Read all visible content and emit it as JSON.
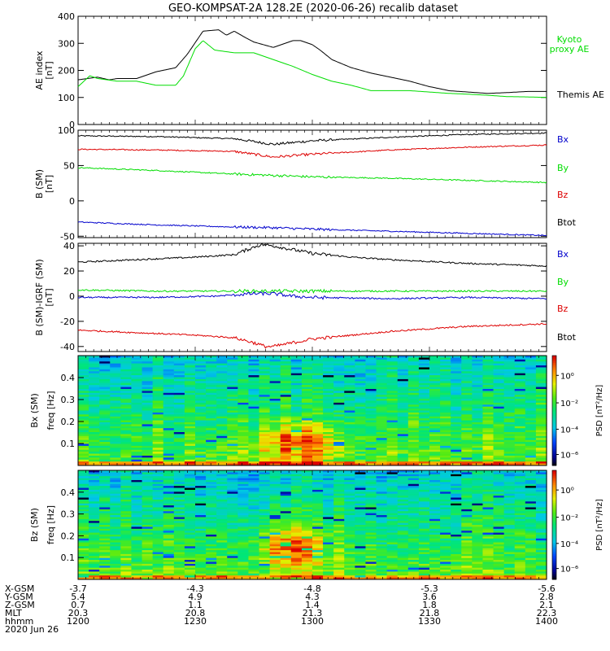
{
  "title": "GEO-KOMPSAT-2A 128.2E (2020-06-26) recalib dataset",
  "colors": {
    "black": "#000000",
    "green": "#00dd00",
    "red": "#dd0000",
    "blue": "#0000cc"
  },
  "chart_data": [
    {
      "type": "line",
      "panel": "ae",
      "ylabel": [
        "AE index",
        "[nT]"
      ],
      "ylim": [
        0,
        400
      ],
      "yticks": [
        "0",
        "100",
        "200",
        "300",
        "400"
      ],
      "series": [
        {
          "name": "Themis AE",
          "color": "#000000",
          "x": [
            0,
            5,
            8,
            10,
            15,
            20,
            25,
            28,
            32,
            36,
            38,
            40,
            43,
            45,
            50,
            55,
            57,
            60,
            62,
            65,
            70,
            75,
            80,
            85,
            90,
            95,
            100,
            105,
            110,
            115,
            120
          ],
          "y": [
            165,
            175,
            165,
            170,
            170,
            195,
            210,
            260,
            345,
            350,
            330,
            345,
            320,
            305,
            285,
            310,
            310,
            295,
            275,
            240,
            210,
            190,
            175,
            160,
            140,
            125,
            120,
            115,
            118,
            122,
            122
          ]
        },
        {
          "name": "Kyoto proxy AE",
          "color": "#00dd00",
          "x": [
            0,
            3,
            5,
            10,
            15,
            20,
            25,
            27,
            30,
            32,
            35,
            40,
            45,
            50,
            55,
            60,
            65,
            70,
            75,
            80,
            85,
            90,
            95,
            100,
            105,
            110,
            115,
            120
          ],
          "y": [
            140,
            180,
            170,
            160,
            160,
            145,
            145,
            180,
            280,
            310,
            275,
            265,
            265,
            240,
            215,
            185,
            160,
            145,
            125,
            125,
            125,
            120,
            115,
            112,
            108,
            103,
            102,
            100
          ]
        }
      ]
    },
    {
      "type": "line",
      "panel": "b",
      "ylabel": [
        "B (SM)",
        "[nT]"
      ],
      "ylim": [
        -52,
        100
      ],
      "yticks": [
        "-50",
        "0",
        "50",
        "100"
      ],
      "series": [
        {
          "name": "Btot",
          "color": "#000000",
          "x": [
            0,
            20,
            40,
            50,
            60,
            80,
            100,
            120
          ],
          "y": [
            92,
            91,
            88,
            80,
            85,
            90,
            94,
            96
          ]
        },
        {
          "name": "Bz",
          "color": "#dd0000",
          "x": [
            0,
            20,
            40,
            50,
            60,
            80,
            100,
            120
          ],
          "y": [
            73,
            72,
            70,
            62,
            66,
            72,
            76,
            79
          ]
        },
        {
          "name": "By",
          "color": "#00dd00",
          "x": [
            0,
            20,
            40,
            50,
            60,
            80,
            100,
            120
          ],
          "y": [
            47,
            43,
            38,
            36,
            34,
            32,
            29,
            26
          ]
        },
        {
          "name": "Bx",
          "color": "#0000cc",
          "x": [
            0,
            20,
            40,
            50,
            60,
            80,
            100,
            120
          ],
          "y": [
            -30,
            -34,
            -37,
            -38,
            -40,
            -43,
            -46,
            -49
          ]
        }
      ]
    },
    {
      "type": "line",
      "panel": "db",
      "ylabel": [
        "B (SM)-IGRF (SM)",
        "[nT]"
      ],
      "ylim": [
        -44,
        42
      ],
      "yticks": [
        "-40",
        "-20",
        "0",
        "20",
        "40"
      ],
      "series": [
        {
          "name": "Btot",
          "color": "#000000",
          "x": [
            0,
            15,
            30,
            40,
            45,
            47,
            50,
            55,
            60,
            70,
            80,
            100,
            120
          ],
          "y": [
            27,
            29,
            31,
            33,
            39,
            41,
            40,
            37,
            34,
            31,
            29,
            26,
            24
          ]
        },
        {
          "name": "By",
          "color": "#00dd00",
          "x": [
            0,
            20,
            40,
            50,
            60,
            80,
            100,
            120
          ],
          "y": [
            5,
            4,
            4,
            4,
            4,
            4,
            4,
            4
          ]
        },
        {
          "name": "Bx",
          "color": "#0000cc",
          "x": [
            0,
            20,
            35,
            45,
            50,
            55,
            60,
            80,
            100,
            120
          ],
          "y": [
            -1,
            -1,
            0,
            2,
            2,
            0,
            -1,
            -2,
            -1,
            -2
          ]
        },
        {
          "name": "Bz",
          "color": "#dd0000",
          "x": [
            0,
            15,
            30,
            40,
            45,
            48,
            50,
            55,
            60,
            70,
            80,
            100,
            120
          ],
          "y": [
            -27,
            -29,
            -31,
            -33,
            -37,
            -40,
            -40,
            -37,
            -34,
            -31,
            -28,
            -24,
            -22
          ]
        }
      ]
    },
    {
      "type": "heatmap",
      "panel": "spec1",
      "ylabel": [
        "Bx (SM)",
        "freq [Hz]"
      ],
      "ylim": [
        0,
        0.5
      ],
      "yticks": [
        "0.1",
        "0.2",
        "0.3",
        "0.4"
      ],
      "colorbar": {
        "label": "PSD [nT²/Hz]",
        "ticks": [
          "10⁰",
          "10⁻²",
          "10⁻⁴",
          "10⁻⁶"
        ]
      },
      "hotspot": {
        "x": 57,
        "f": 0.1
      }
    },
    {
      "type": "heatmap",
      "panel": "spec2",
      "ylabel": [
        "Bz (SM)",
        "freq [Hz]"
      ],
      "ylim": [
        0,
        0.5
      ],
      "yticks": [
        "0.1",
        "0.2",
        "0.3",
        "0.4"
      ],
      "colorbar": {
        "label": "PSD [nT²/Hz]",
        "ticks": [
          "10⁰",
          "10⁻²",
          "10⁻⁴",
          "10⁻⁶"
        ]
      },
      "hotspot": {
        "x": 55,
        "f": 0.15
      }
    }
  ],
  "legends": {
    "ae": {
      "kyoto": [
        "Kyoto",
        "proxy AE"
      ],
      "themis": "Themis AE"
    },
    "b": [
      "Bx",
      "By",
      "Bz",
      "Btot"
    ],
    "db": [
      "Bx",
      "By",
      "Bz",
      "Btot"
    ]
  },
  "ephemeris": {
    "labels": [
      "X-GSM",
      "Y-GSM",
      "Z-GSM",
      "MLT",
      "hhmm"
    ],
    "date": "2020 Jun 26",
    "columns": [
      [
        "-3.7",
        "5.4",
        "0.7",
        "20.3",
        "1200"
      ],
      [
        "-4.3",
        "4.9",
        "1.1",
        "20.8",
        "1230"
      ],
      [
        "-4.8",
        "4.3",
        "1.4",
        "21.3",
        "1300"
      ],
      [
        "-5.3",
        "3.6",
        "1.8",
        "21.8",
        "1330"
      ],
      [
        "-5.6",
        "2.8",
        "2.1",
        "22.3",
        "1400"
      ]
    ]
  }
}
